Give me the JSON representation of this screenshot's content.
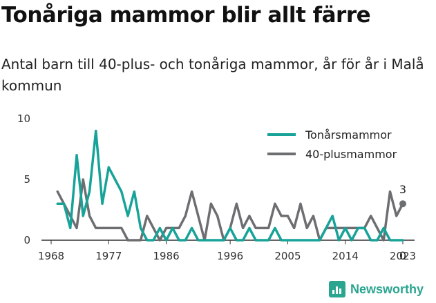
{
  "header": {
    "title": "Tonåriga mammor blir allt färre",
    "subtitle": "Antal barn till 40-plus- och tonåriga mammor, år för år i Malå kommun"
  },
  "branding": {
    "logo_text": "Newsworthy",
    "logo_icon": "bar-chart-icon",
    "color": "#2aa58f"
  },
  "chart_data": {
    "type": "line",
    "title": "Tonåriga mammor blir allt färre",
    "subtitle": "Antal barn till 40-plus- och tonåriga mammor, år för år i Malå kommun",
    "xlabel": "",
    "ylabel": "",
    "x": [
      1969,
      1970,
      1971,
      1972,
      1973,
      1974,
      1975,
      1976,
      1977,
      1978,
      1979,
      1980,
      1981,
      1982,
      1983,
      1984,
      1985,
      1986,
      1987,
      1988,
      1989,
      1990,
      1991,
      1992,
      1993,
      1994,
      1995,
      1996,
      1997,
      1998,
      1999,
      2000,
      2001,
      2002,
      2003,
      2004,
      2005,
      2006,
      2007,
      2008,
      2009,
      2010,
      2011,
      2012,
      2013,
      2014,
      2015,
      2016,
      2017,
      2018,
      2019,
      2020,
      2021,
      2022,
      2023
    ],
    "xticks": [
      "1968",
      "1977",
      "1986",
      "1996",
      "2005",
      "2014",
      "2023"
    ],
    "xtick_values": [
      1968,
      1977,
      1986,
      1996,
      2005,
      2014,
      2023
    ],
    "yticks": [
      "0",
      "5",
      "10"
    ],
    "ylim": [
      0,
      10
    ],
    "grid": false,
    "legend_position": "top-right",
    "series": [
      {
        "name": "Tonårsmammor",
        "color": "#17a398",
        "values": [
          3,
          3,
          1,
          7,
          2,
          4,
          9,
          3,
          6,
          5,
          4,
          2,
          4,
          1,
          0,
          0,
          1,
          0,
          1,
          0,
          0,
          1,
          0,
          0,
          0,
          0,
          0,
          1,
          0,
          0,
          1,
          0,
          0,
          0,
          1,
          0,
          0,
          0,
          0,
          0,
          0,
          0,
          1,
          2,
          0,
          1,
          0,
          1,
          1,
          0,
          0,
          1,
          0,
          0,
          0
        ],
        "end_label": "0"
      },
      {
        "name": "40-plusmammor",
        "color": "#6d6e71",
        "values": [
          4,
          3,
          2,
          1,
          5,
          2,
          1,
          1,
          1,
          1,
          1,
          0,
          0,
          0,
          2,
          1,
          0,
          1,
          1,
          1,
          2,
          4,
          2,
          0,
          3,
          2,
          0,
          1,
          3,
          1,
          2,
          1,
          1,
          1,
          3,
          2,
          2,
          1,
          3,
          1,
          2,
          0,
          1,
          1,
          1,
          1,
          1,
          1,
          1,
          2,
          1,
          0,
          4,
          2,
          3
        ],
        "end_label": "3"
      }
    ]
  }
}
